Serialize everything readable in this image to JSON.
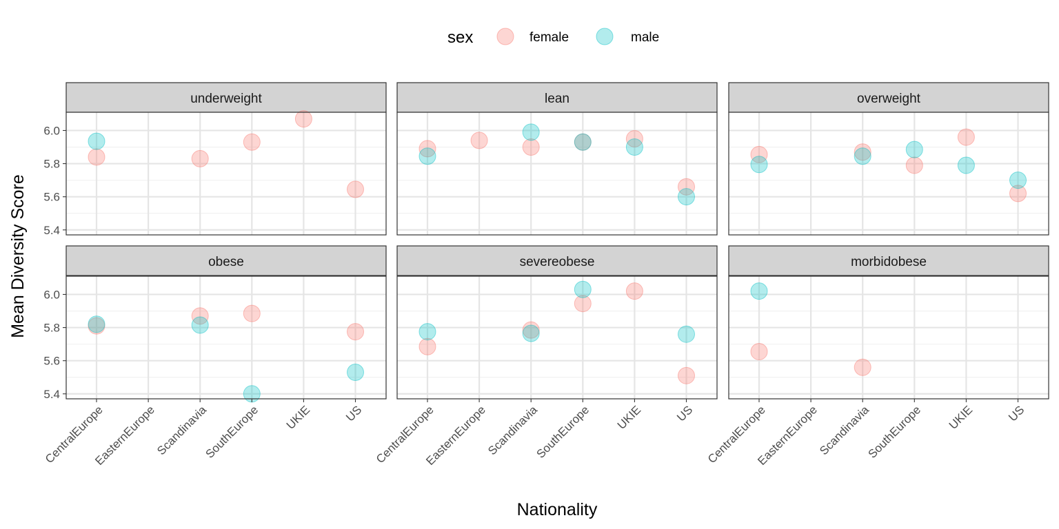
{
  "chart_data": {
    "type": "scatter",
    "xlabel": "Nationality",
    "ylabel": "Mean Diversity Score",
    "ylim": [
      5.37,
      6.11
    ],
    "yticks": [
      5.4,
      5.6,
      5.8,
      6.0
    ],
    "ytick_labels": [
      "5.4",
      "5.6",
      "5.8",
      "6.0"
    ],
    "categories": [
      "CentralEurope",
      "EasternEurope",
      "Scandinavia",
      "SouthEurope",
      "UKIE",
      "US"
    ],
    "legend": {
      "title": "sex",
      "position": "top",
      "entries": [
        {
          "name": "female",
          "color": "#F8766D"
        },
        {
          "name": "male",
          "color": "#00BFC4"
        }
      ]
    },
    "grid": true,
    "point_alpha": 0.3,
    "panels": [
      {
        "title": "underweight",
        "female": [
          [
            "CentralEurope",
            5.84
          ],
          [
            "Scandinavia",
            5.83
          ],
          [
            "SouthEurope",
            5.93
          ],
          [
            "UKIE",
            6.07
          ],
          [
            "US",
            5.645
          ]
        ],
        "male": [
          [
            "CentralEurope",
            5.935
          ]
        ]
      },
      {
        "title": "lean",
        "female": [
          [
            "CentralEurope",
            5.89
          ],
          [
            "EasternEurope",
            5.94
          ],
          [
            "Scandinavia",
            5.9
          ],
          [
            "SouthEurope",
            5.93
          ],
          [
            "UKIE",
            5.95
          ],
          [
            "US",
            5.66
          ]
        ],
        "male": [
          [
            "CentralEurope",
            5.845
          ],
          [
            "Scandinavia",
            5.99
          ],
          [
            "SouthEurope",
            5.93
          ],
          [
            "UKIE",
            5.9
          ],
          [
            "US",
            5.6
          ]
        ]
      },
      {
        "title": "overweight",
        "female": [
          [
            "CentralEurope",
            5.855
          ],
          [
            "Scandinavia",
            5.87
          ],
          [
            "SouthEurope",
            5.79
          ],
          [
            "UKIE",
            5.96
          ],
          [
            "US",
            5.62
          ]
        ],
        "male": [
          [
            "CentralEurope",
            5.795
          ],
          [
            "Scandinavia",
            5.845
          ],
          [
            "SouthEurope",
            5.885
          ],
          [
            "UKIE",
            5.79
          ],
          [
            "US",
            5.7
          ]
        ]
      },
      {
        "title": "obese",
        "female": [
          [
            "CentralEurope",
            5.81
          ],
          [
            "Scandinavia",
            5.87
          ],
          [
            "SouthEurope",
            5.885
          ],
          [
            "US",
            5.775
          ]
        ],
        "male": [
          [
            "CentralEurope",
            5.82
          ],
          [
            "Scandinavia",
            5.815
          ],
          [
            "SouthEurope",
            5.4
          ],
          [
            "US",
            5.53
          ]
        ]
      },
      {
        "title": "severeobese",
        "female": [
          [
            "CentralEurope",
            5.685
          ],
          [
            "Scandinavia",
            5.785
          ],
          [
            "SouthEurope",
            5.945
          ],
          [
            "UKIE",
            6.02
          ],
          [
            "US",
            5.51
          ]
        ],
        "male": [
          [
            "CentralEurope",
            5.775
          ],
          [
            "Scandinavia",
            5.765
          ],
          [
            "SouthEurope",
            6.03
          ],
          [
            "US",
            5.76
          ]
        ]
      },
      {
        "title": "morbidobese",
        "female": [
          [
            "CentralEurope",
            5.655
          ],
          [
            "Scandinavia",
            5.56
          ]
        ],
        "male": [
          [
            "CentralEurope",
            6.02
          ]
        ]
      }
    ]
  }
}
